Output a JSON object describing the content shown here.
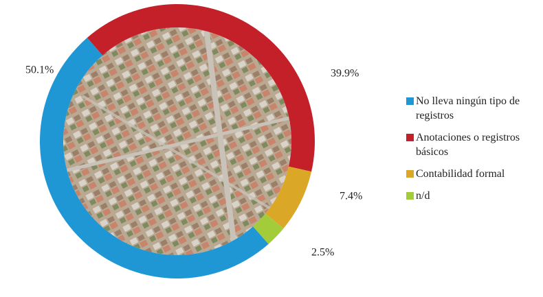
{
  "chart_data": {
    "type": "donut",
    "categories": [
      "No lleva ningún tipo de registros",
      "Anotaciones o registros básicos",
      "Contabilidad formal",
      "n/d"
    ],
    "values": [
      50.1,
      39.9,
      7.4,
      2.5
    ],
    "value_labels": [
      "50.1%",
      "39.9%",
      "7.4%",
      "2.5%"
    ],
    "colors": [
      "#1f97d4",
      "#c4202a",
      "#dba727",
      "#a3cc3a"
    ],
    "legend": "right"
  }
}
